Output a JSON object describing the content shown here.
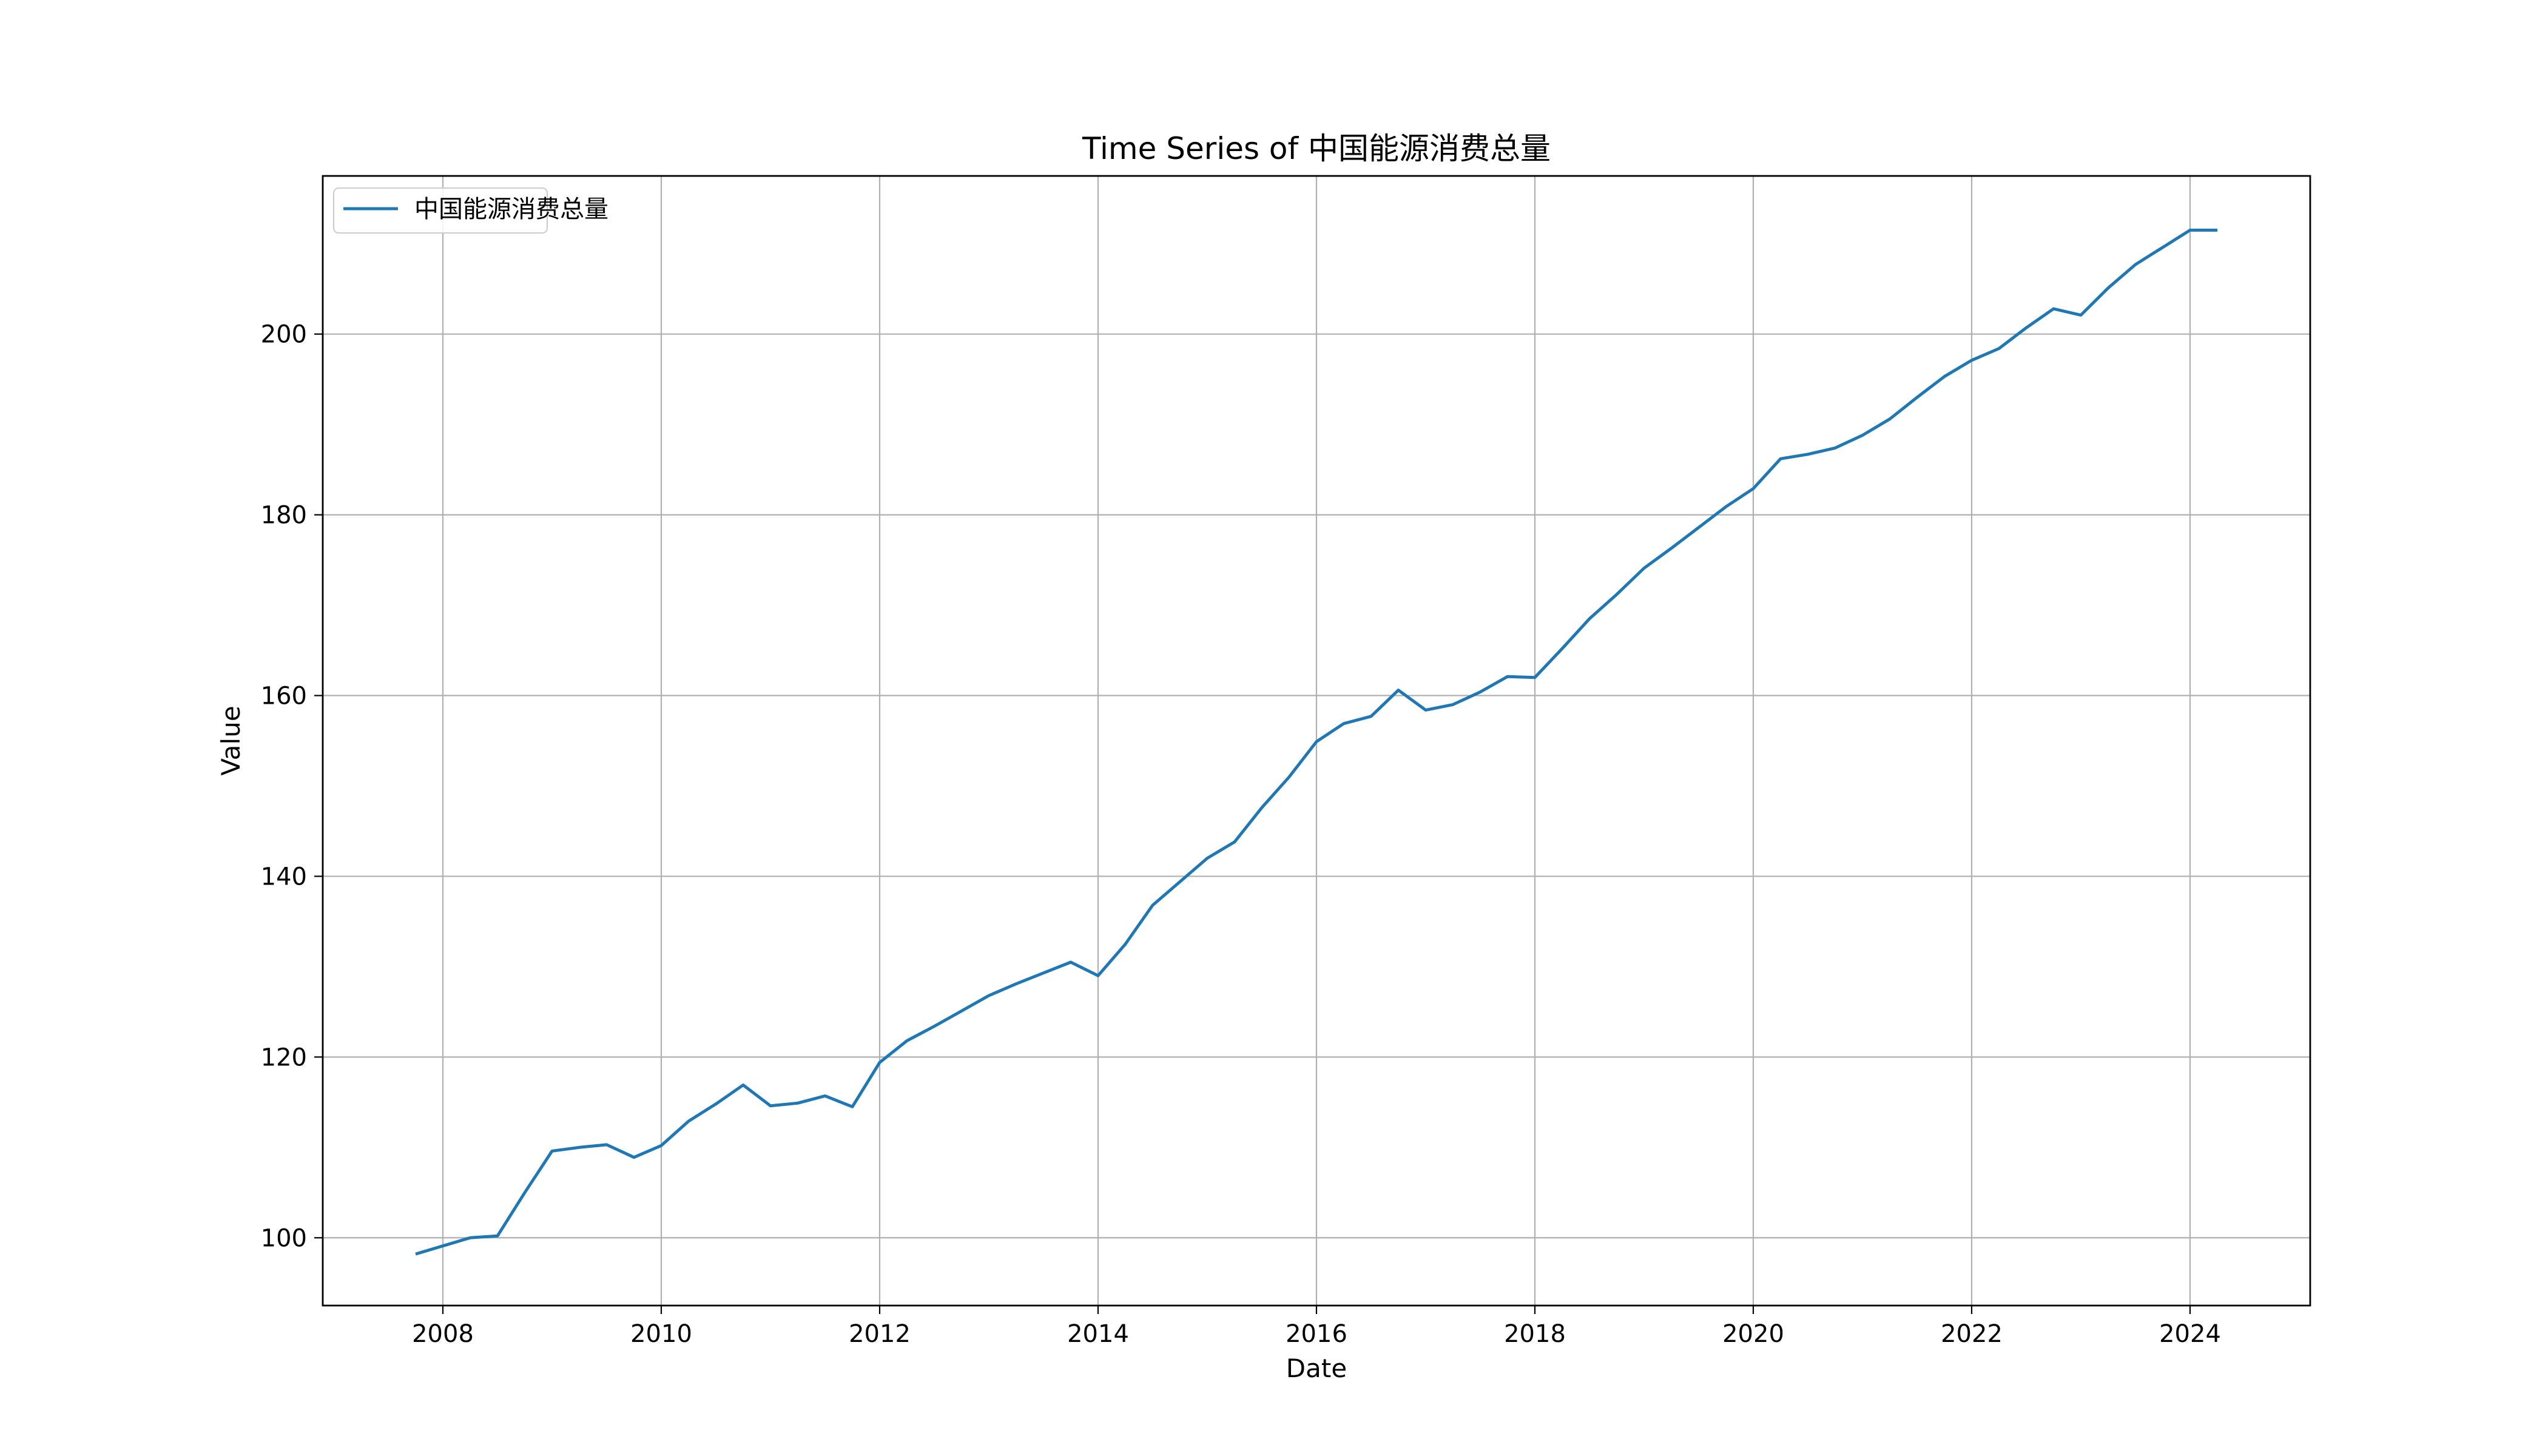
{
  "chart_data": {
    "type": "line",
    "title": "Time Series of 中国能源消费总量",
    "xlabel": "Date",
    "ylabel": "Value",
    "xlim": [
      2006.9,
      2025.1
    ],
    "ylim": [
      92.5,
      217.5
    ],
    "xticks": [
      "2008",
      "2010",
      "2012",
      "2014",
      "2016",
      "2018",
      "2020",
      "2022",
      "2024"
    ],
    "yticks": [
      "100",
      "120",
      "140",
      "160",
      "180",
      "200"
    ],
    "grid": true,
    "legend": "upper-left",
    "series": [
      {
        "name": "中国能源消费总量",
        "color": "#1f77b4",
        "x": [
          "2007-10-01",
          "2008-01-01",
          "2008-04-01",
          "2008-07-01",
          "2008-10-01",
          "2009-01-01",
          "2009-04-01",
          "2009-07-01",
          "2009-10-01",
          "2010-01-01",
          "2010-04-01",
          "2010-07-01",
          "2010-10-01",
          "2011-01-01",
          "2011-04-01",
          "2011-07-01",
          "2011-10-01",
          "2012-01-01",
          "2012-04-01",
          "2012-07-01",
          "2012-10-01",
          "2013-01-01",
          "2013-04-01",
          "2013-07-01",
          "2013-10-01",
          "2014-01-01",
          "2014-04-01",
          "2014-07-01",
          "2014-10-01",
          "2015-01-01",
          "2015-04-01",
          "2015-07-01",
          "2015-10-01",
          "2016-01-01",
          "2016-04-01",
          "2016-07-01",
          "2016-10-01",
          "2017-01-01",
          "2017-04-01",
          "2017-07-01",
          "2017-10-01",
          "2018-01-01",
          "2018-04-01",
          "2018-07-01",
          "2018-10-01",
          "2019-01-01",
          "2019-04-01",
          "2019-07-01",
          "2019-10-01",
          "2020-01-01",
          "2020-04-01",
          "2020-07-01",
          "2020-10-01",
          "2021-01-01",
          "2021-04-01",
          "2021-07-01",
          "2021-10-01",
          "2022-01-01",
          "2022-04-01",
          "2022-07-01",
          "2022-10-01",
          "2023-01-01",
          "2023-04-01",
          "2023-07-01",
          "2023-10-01",
          "2024-01-01",
          "2024-04-01"
        ],
        "y": [
          98.2,
          99.1,
          100.0,
          100.2,
          105.0,
          109.6,
          110.0,
          110.3,
          108.9,
          110.2,
          112.9,
          114.8,
          116.9,
          114.6,
          114.9,
          115.7,
          114.5,
          119.4,
          121.8,
          123.4,
          125.1,
          126.8,
          128.1,
          129.3,
          130.5,
          129.0,
          132.5,
          136.8,
          139.4,
          142.0,
          143.8,
          147.6,
          151.0,
          154.9,
          156.9,
          157.7,
          160.6,
          158.4,
          159.0,
          160.4,
          162.1,
          162.0,
          165.2,
          168.5,
          171.2,
          174.1,
          176.3,
          178.6,
          180.9,
          182.9,
          186.2,
          186.7,
          187.4,
          188.8,
          190.6,
          193.0,
          195.3,
          197.1,
          198.4,
          200.7,
          202.8,
          202.1,
          205.1,
          207.7,
          209.6,
          211.5,
          211.5
        ]
      }
    ]
  }
}
